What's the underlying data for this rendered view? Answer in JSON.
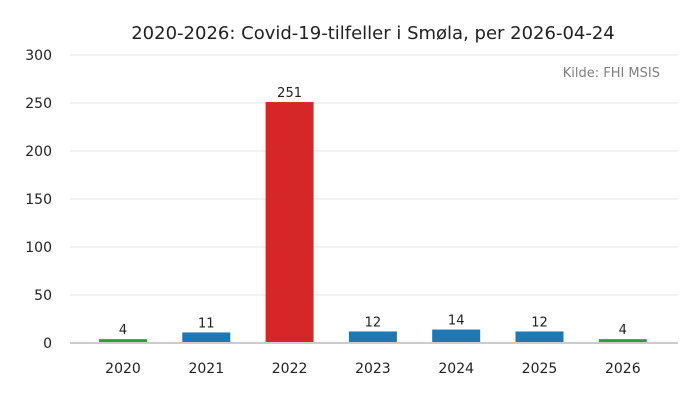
{
  "chart_data": {
    "type": "bar",
    "title": "2020-2026: Covid-19-tilfeller i Smøla, per 2026-04-24",
    "source": "Kilde: FHI MSIS",
    "xlabel": "",
    "ylabel": "",
    "categories": [
      "2020",
      "2021",
      "2022",
      "2023",
      "2024",
      "2025",
      "2026"
    ],
    "values": [
      4,
      11,
      251,
      12,
      14,
      12,
      4
    ],
    "bar_colors": [
      "#2ca02c",
      "#1f77b4",
      "#d62728",
      "#1f77b4",
      "#1f77b4",
      "#1f77b4",
      "#2ca02c"
    ],
    "ylim": [
      0,
      300
    ],
    "yticks": [
      0,
      50,
      100,
      150,
      200,
      250,
      300
    ],
    "grid": true,
    "data_labels": true
  }
}
